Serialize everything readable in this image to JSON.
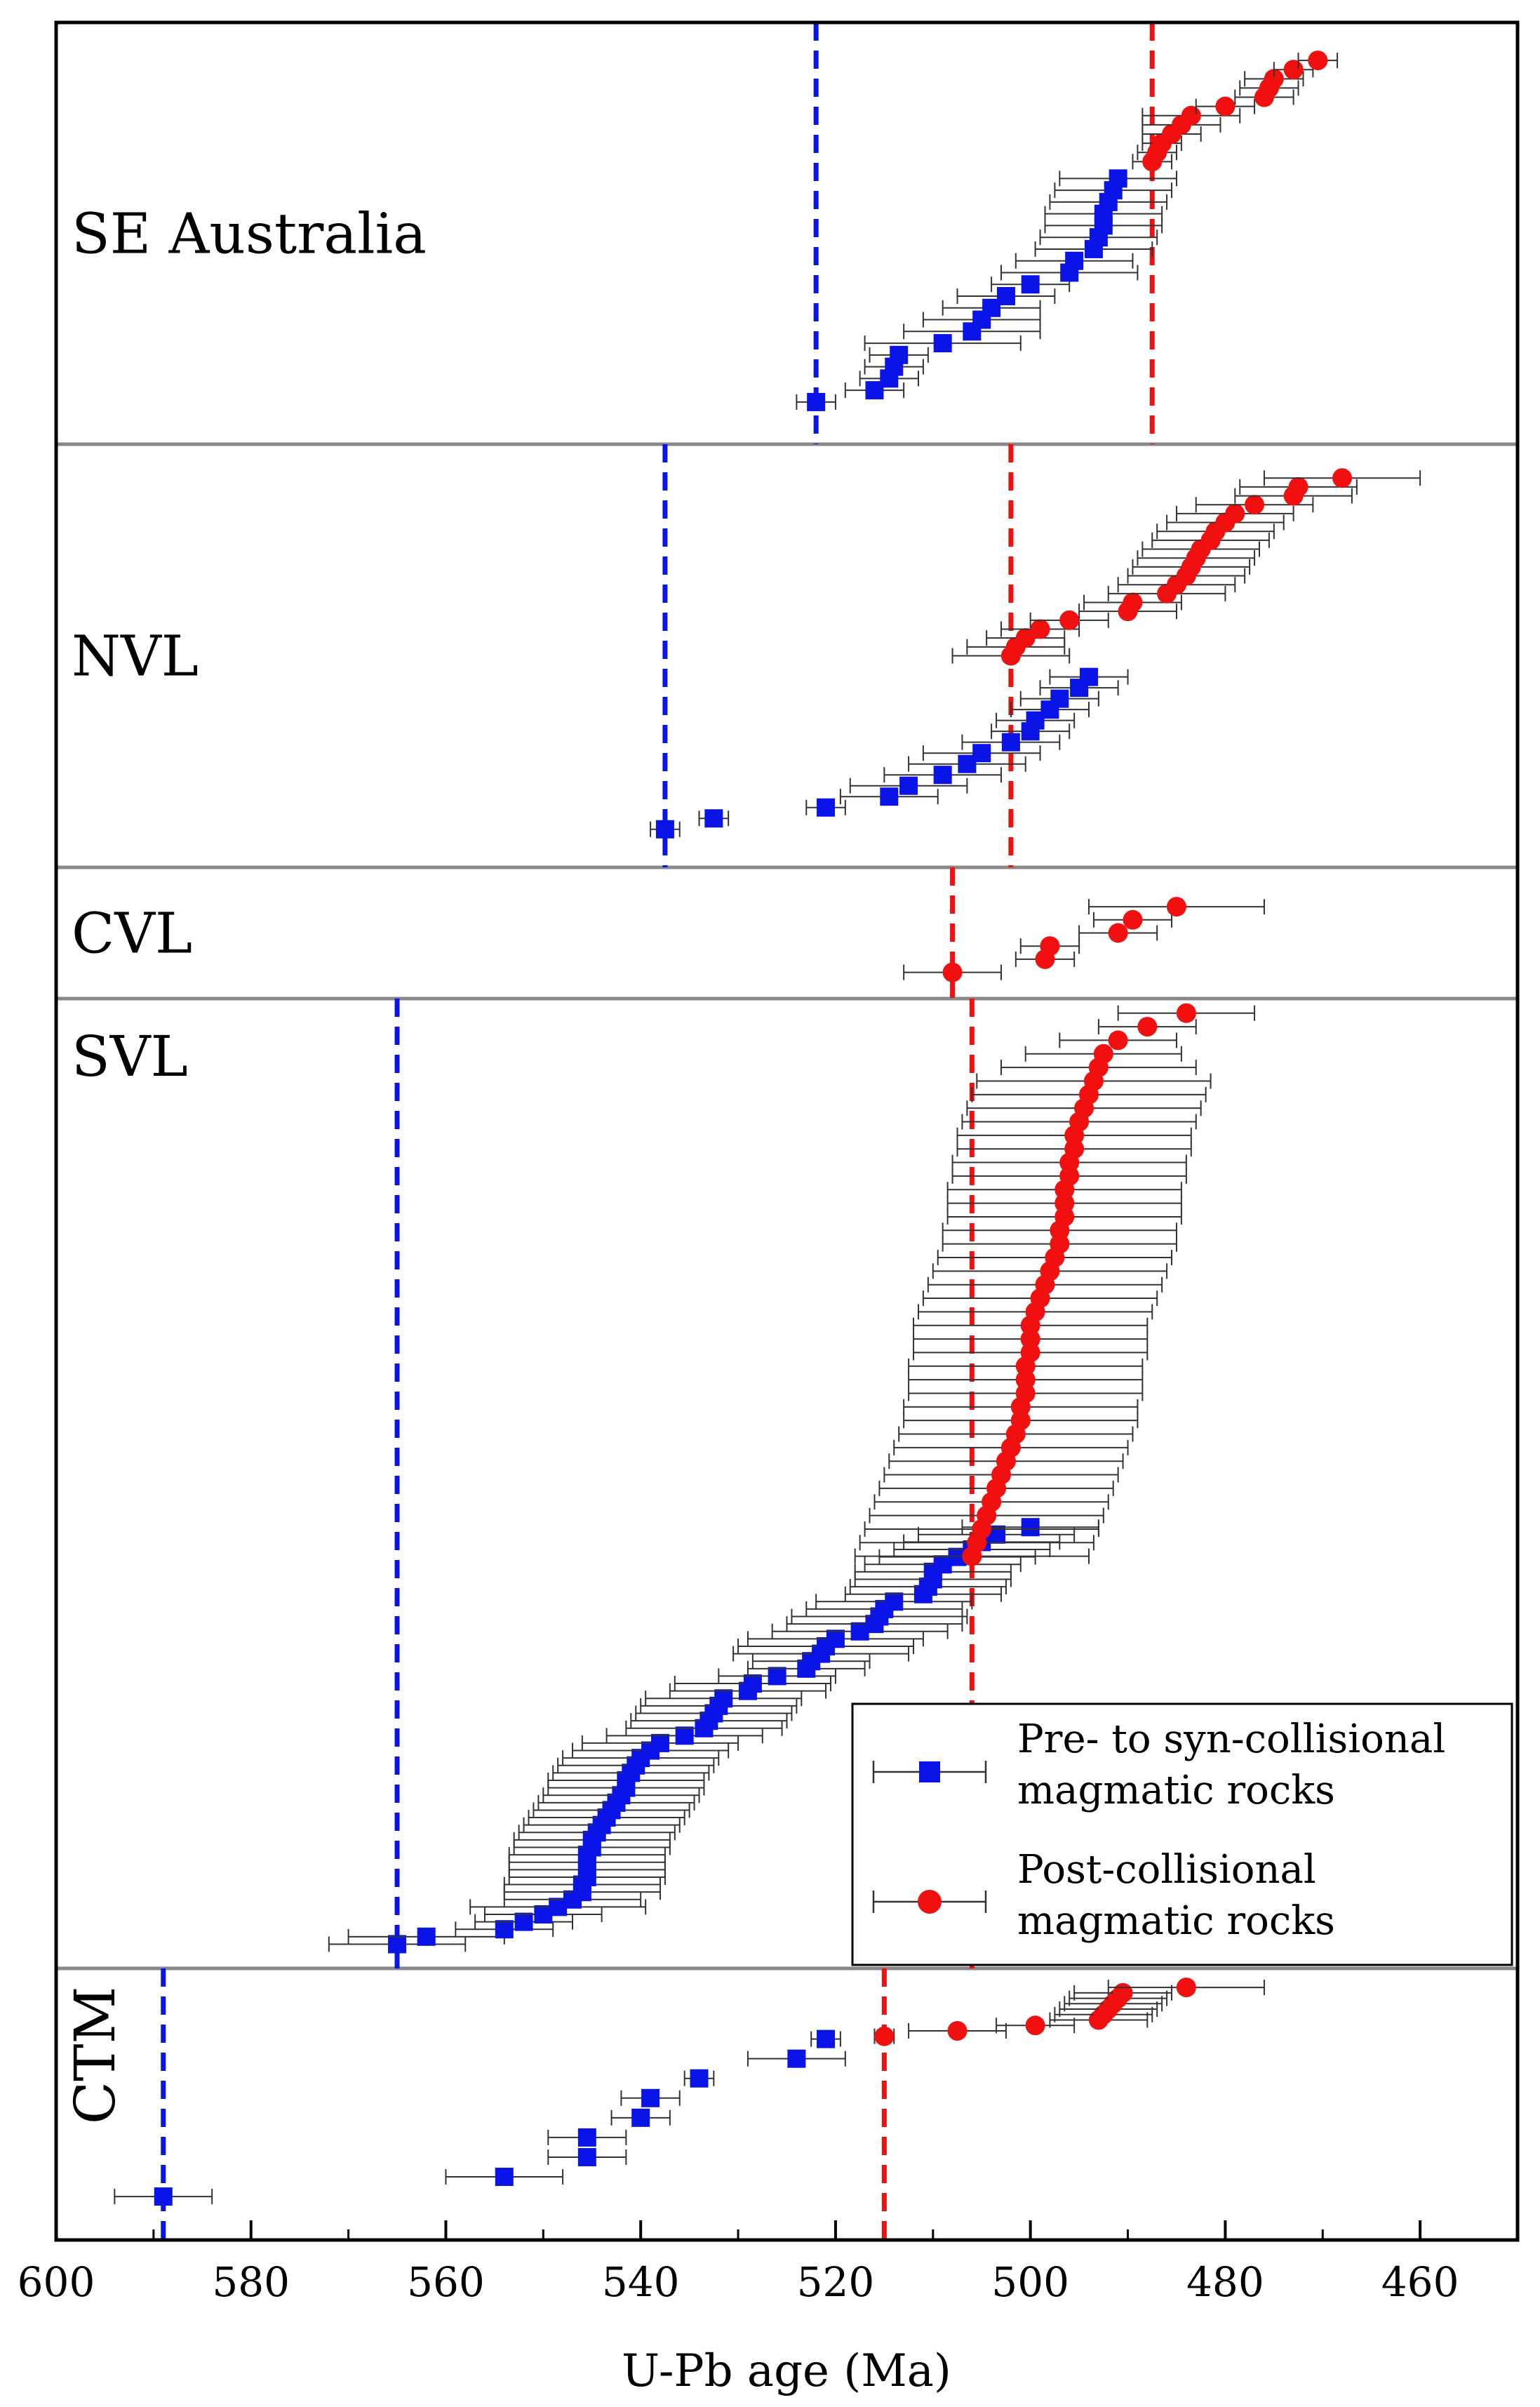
{
  "chart_data": {
    "type": "scatter",
    "xlabel": "U-Pb age (Ma)",
    "xlim": [
      600,
      450
    ],
    "xticks": [
      600,
      580,
      560,
      540,
      520,
      500,
      480,
      460
    ],
    "colors": {
      "pre": "#0a14e6",
      "post": "#f01010",
      "gridline": "#888888",
      "error": "#333333"
    },
    "legend": {
      "position": "lower-right of SVL panel",
      "entries": [
        {
          "series": "pre",
          "line1": "Pre- to syn-collisional",
          "line2": "magmatic rocks"
        },
        {
          "series": "post",
          "line1": "Post-collisional",
          "line2": "magmatic rocks"
        }
      ]
    },
    "panels": [
      {
        "name": "SE Australia",
        "label_pos": "left-middle",
        "vlines": [
          {
            "series": "pre",
            "age": 522
          },
          {
            "series": "post",
            "age": 487.5
          }
        ],
        "pre": {
          "ages": [
            522,
            516,
            514.5,
            514,
            513.5,
            509,
            506,
            505,
            504,
            502.5,
            500,
            496,
            495.5,
            493.5,
            493,
            492.5,
            492.5,
            492,
            491.5,
            491
          ],
          "errors": [
            2,
            3,
            3,
            3,
            3,
            8,
            7,
            6,
            5,
            5,
            4,
            7,
            6,
            6,
            6,
            6,
            6,
            6,
            6,
            6
          ]
        },
        "post": {
          "ages": [
            487.5,
            487,
            486.5,
            485.5,
            484.5,
            483.5,
            480,
            476,
            475.5,
            475,
            473,
            470.5
          ],
          "errors": [
            2,
            2,
            2,
            3,
            4,
            5,
            3,
            3,
            3,
            3,
            2,
            2
          ]
        }
      },
      {
        "name": "NVL",
        "label_pos": "left-middle",
        "vlines": [
          {
            "series": "pre",
            "age": 537.5
          },
          {
            "series": "post",
            "age": 502
          }
        ],
        "pre": {
          "ages": [
            537.5,
            532.5,
            521,
            514.5,
            512.5,
            509,
            506.5,
            505,
            502,
            500,
            499.5,
            498,
            497,
            495,
            494
          ],
          "errors": [
            1.5,
            1.5,
            2,
            5,
            6,
            6,
            6,
            6,
            5,
            4,
            4,
            4,
            4,
            4,
            4
          ]
        },
        "post": {
          "ages": [
            502,
            501.5,
            500.5,
            499,
            496,
            490,
            489.5,
            486,
            485,
            484,
            483.5,
            483,
            482.5,
            481.5,
            481,
            480,
            479,
            477,
            473,
            472.5,
            468
          ],
          "errors": [
            6,
            5,
            4,
            4,
            4,
            5,
            5,
            6,
            6,
            6,
            6,
            6,
            6,
            6,
            6,
            6,
            6,
            6,
            6,
            6,
            8
          ]
        }
      },
      {
        "name": "CVL",
        "label_pos": "left-middle",
        "vlines": [
          {
            "series": "post",
            "age": 508
          }
        ],
        "post": {
          "ages": [
            508,
            498.5,
            498,
            491,
            489.5,
            485
          ],
          "errors": [
            5,
            3,
            3,
            4,
            4,
            9
          ]
        }
      },
      {
        "name": "SVL",
        "label_pos": "left-top",
        "vlines": [
          {
            "series": "pre",
            "age": 565
          },
          {
            "series": "post",
            "age": 506
          }
        ],
        "pre": {
          "ages": [
            565,
            562,
            554,
            552,
            550,
            548.5,
            547,
            546,
            546,
            545.5,
            545.5,
            545.5,
            545.5,
            545,
            545,
            544.5,
            544,
            543.5,
            543,
            542.5,
            542,
            541.5,
            541.5,
            541,
            540.5,
            540,
            539,
            538,
            535.5,
            533.5,
            533,
            532.5,
            532,
            531.5,
            529,
            528.5,
            526,
            523,
            522.5,
            521.5,
            521,
            520,
            517.5,
            516,
            515.5,
            515,
            514,
            511,
            510.5,
            510,
            510,
            509,
            507.5,
            506,
            505,
            503.5,
            500
          ],
          "errors": [
            7,
            8,
            5,
            5,
            6,
            9,
            7,
            8,
            8,
            8,
            8,
            8,
            8,
            8,
            8,
            8,
            8,
            8,
            8,
            8,
            8,
            8,
            8,
            8,
            8,
            8,
            8,
            8,
            8,
            8,
            8,
            8,
            8,
            8,
            8,
            8,
            6,
            6,
            6,
            9,
            9,
            9,
            9,
            9,
            9,
            8,
            8,
            8,
            8,
            8,
            8,
            8,
            8,
            8,
            8,
            8,
            7
          ]
        },
        "post": {
          "ages": [
            506,
            505.5,
            505,
            504.5,
            504,
            503.5,
            503,
            502.5,
            502,
            501.5,
            501,
            501,
            500.5,
            500.5,
            500.5,
            500,
            500,
            500,
            499.5,
            499,
            498.5,
            498,
            497.5,
            497,
            497,
            496.5,
            496.5,
            496.5,
            496,
            496,
            495.5,
            495.5,
            495,
            494.5,
            494,
            493.5,
            493,
            492.5,
            491,
            488,
            484
          ],
          "errors": [
            12,
            12,
            12,
            12,
            12,
            12,
            12,
            12,
            12,
            12,
            12,
            12,
            12,
            12,
            12,
            12,
            12,
            12,
            12,
            12,
            12,
            12,
            12,
            12,
            12,
            12,
            12,
            12,
            12,
            12,
            12,
            12,
            12,
            12,
            12,
            12,
            10,
            8,
            6,
            5,
            7
          ]
        }
      },
      {
        "name": "CTM",
        "label_pos": "left-rotated",
        "vlines": [
          {
            "series": "pre",
            "age": 589
          },
          {
            "series": "post",
            "age": 515
          }
        ],
        "pre": {
          "ages": [
            589,
            554,
            545.5,
            545.5,
            540,
            539,
            534,
            524,
            521
          ],
          "errors": [
            5,
            6,
            4,
            4,
            3,
            3,
            1.5,
            5,
            1.5
          ]
        },
        "post": {
          "ages": [
            515,
            507.5,
            499.5,
            493,
            492.5,
            492,
            491.5,
            491,
            490.5,
            484
          ],
          "errors": [
            1,
            5,
            4,
            5,
            5,
            5,
            5,
            5,
            5,
            8
          ]
        }
      }
    ]
  }
}
